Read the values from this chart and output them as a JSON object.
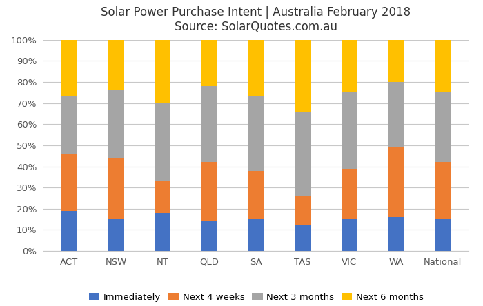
{
  "categories": [
    "ACT",
    "NSW",
    "NT",
    "QLD",
    "SA",
    "TAS",
    "VIC",
    "WA",
    "National"
  ],
  "immediately": [
    19,
    15,
    18,
    14,
    15,
    12,
    15,
    16,
    15
  ],
  "next_4_weeks": [
    27,
    29,
    15,
    28,
    23,
    14,
    24,
    33,
    27
  ],
  "next_3_months": [
    27,
    32,
    37,
    36,
    35,
    40,
    36,
    31,
    33
  ],
  "next_6_months": [
    27,
    24,
    30,
    22,
    27,
    34,
    25,
    20,
    25
  ],
  "color_immediately": "#4472C4",
  "color_next_4_weeks": "#ED7D31",
  "color_next_3_months": "#A5A5A5",
  "color_next_6_months": "#FFC000",
  "title_line1": "Solar Power Purchase Intent | Australia February 2018",
  "title_line2": "Source: SolarQuotes.com.au",
  "legend_labels": [
    "Immediately",
    "Next 4 weeks",
    "Next 3 months",
    "Next 6 months"
  ],
  "ylabel_ticks": [
    0,
    10,
    20,
    30,
    40,
    50,
    60,
    70,
    80,
    90,
    100
  ],
  "background_color": "#ffffff",
  "grid_color": "#c8c8c8",
  "bar_width": 0.35
}
